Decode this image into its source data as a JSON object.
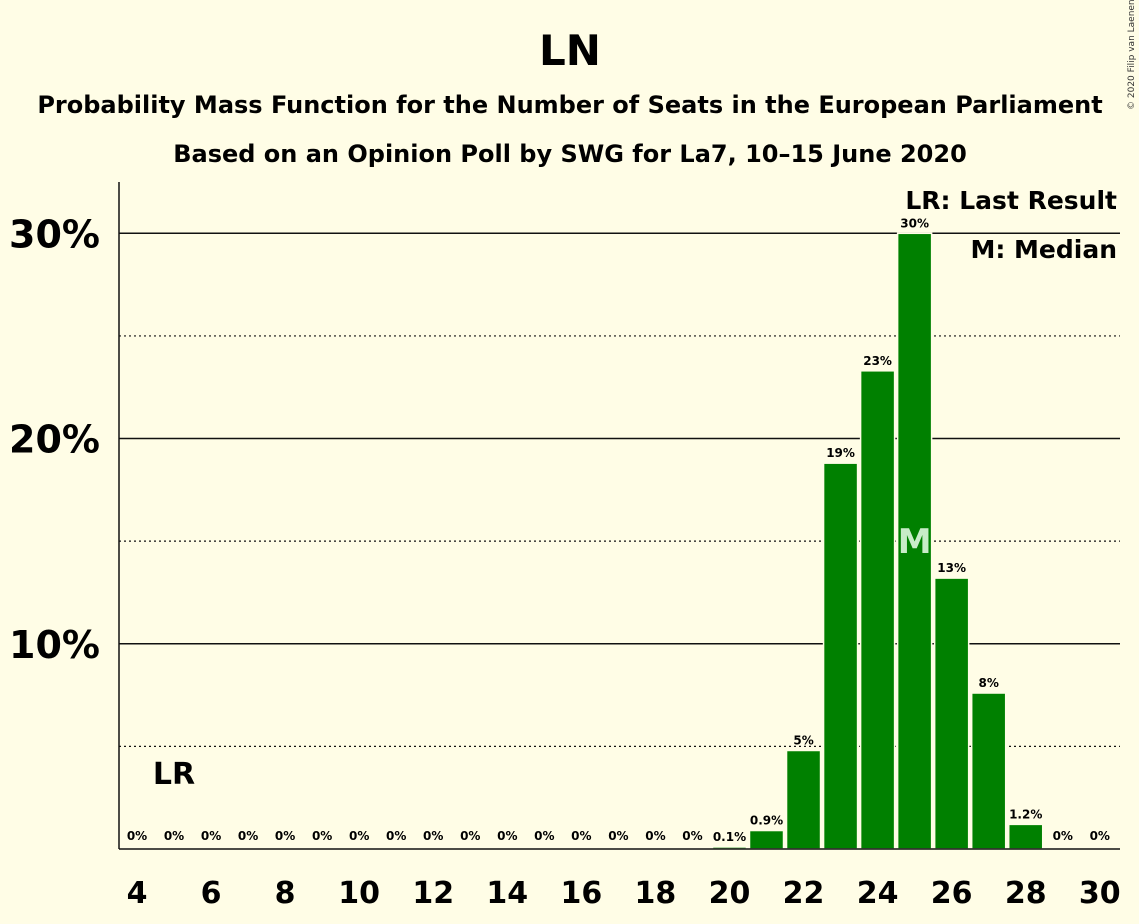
{
  "chart_data": {
    "type": "bar",
    "title": "LN",
    "subtitle": "Probability Mass Function for the Number of Seats in the European Parliament",
    "subtitle2": "Based on an Opinion Poll by SWG for La7, 10–15 June 2020",
    "credit": "© 2020 Filip van Laenen",
    "x": [
      4,
      5,
      6,
      7,
      8,
      9,
      10,
      11,
      12,
      13,
      14,
      15,
      16,
      17,
      18,
      19,
      20,
      21,
      22,
      23,
      24,
      25,
      26,
      27,
      28,
      29,
      30
    ],
    "values": [
      0,
      0,
      0,
      0,
      0,
      0,
      0,
      0,
      0,
      0,
      0,
      0,
      0,
      0,
      0,
      0,
      0.1,
      0.9,
      4.8,
      18.8,
      23.3,
      30.0,
      13.2,
      7.6,
      1.2,
      0,
      0
    ],
    "data_labels": [
      "0%",
      "0%",
      "0%",
      "0%",
      "0%",
      "0%",
      "0%",
      "0%",
      "0%",
      "0%",
      "0%",
      "0%",
      "0%",
      "0%",
      "0%",
      "0%",
      "0.1%",
      "0.9%",
      "5%",
      "19%",
      "23%",
      "30%",
      "13%",
      "8%",
      "1.2%",
      "0%",
      "0%"
    ],
    "xticks": [
      "4",
      "6",
      "8",
      "10",
      "12",
      "14",
      "16",
      "18",
      "20",
      "22",
      "24",
      "26",
      "28",
      "30"
    ],
    "yticks": [
      {
        "value": 10,
        "label": "10%"
      },
      {
        "value": 20,
        "label": "20%"
      },
      {
        "value": 30,
        "label": "30%"
      }
    ],
    "minor_gridlines": [
      5,
      15,
      25
    ],
    "ylim": [
      0,
      32.5
    ],
    "bar_color": "#008000",
    "last_result_seat": 5,
    "last_result_label": "LR",
    "median_seat": 25,
    "median_label": "M",
    "legend": [
      "LR: Last Result",
      "M: Median"
    ],
    "legend_position": "top-right",
    "grid": true
  }
}
